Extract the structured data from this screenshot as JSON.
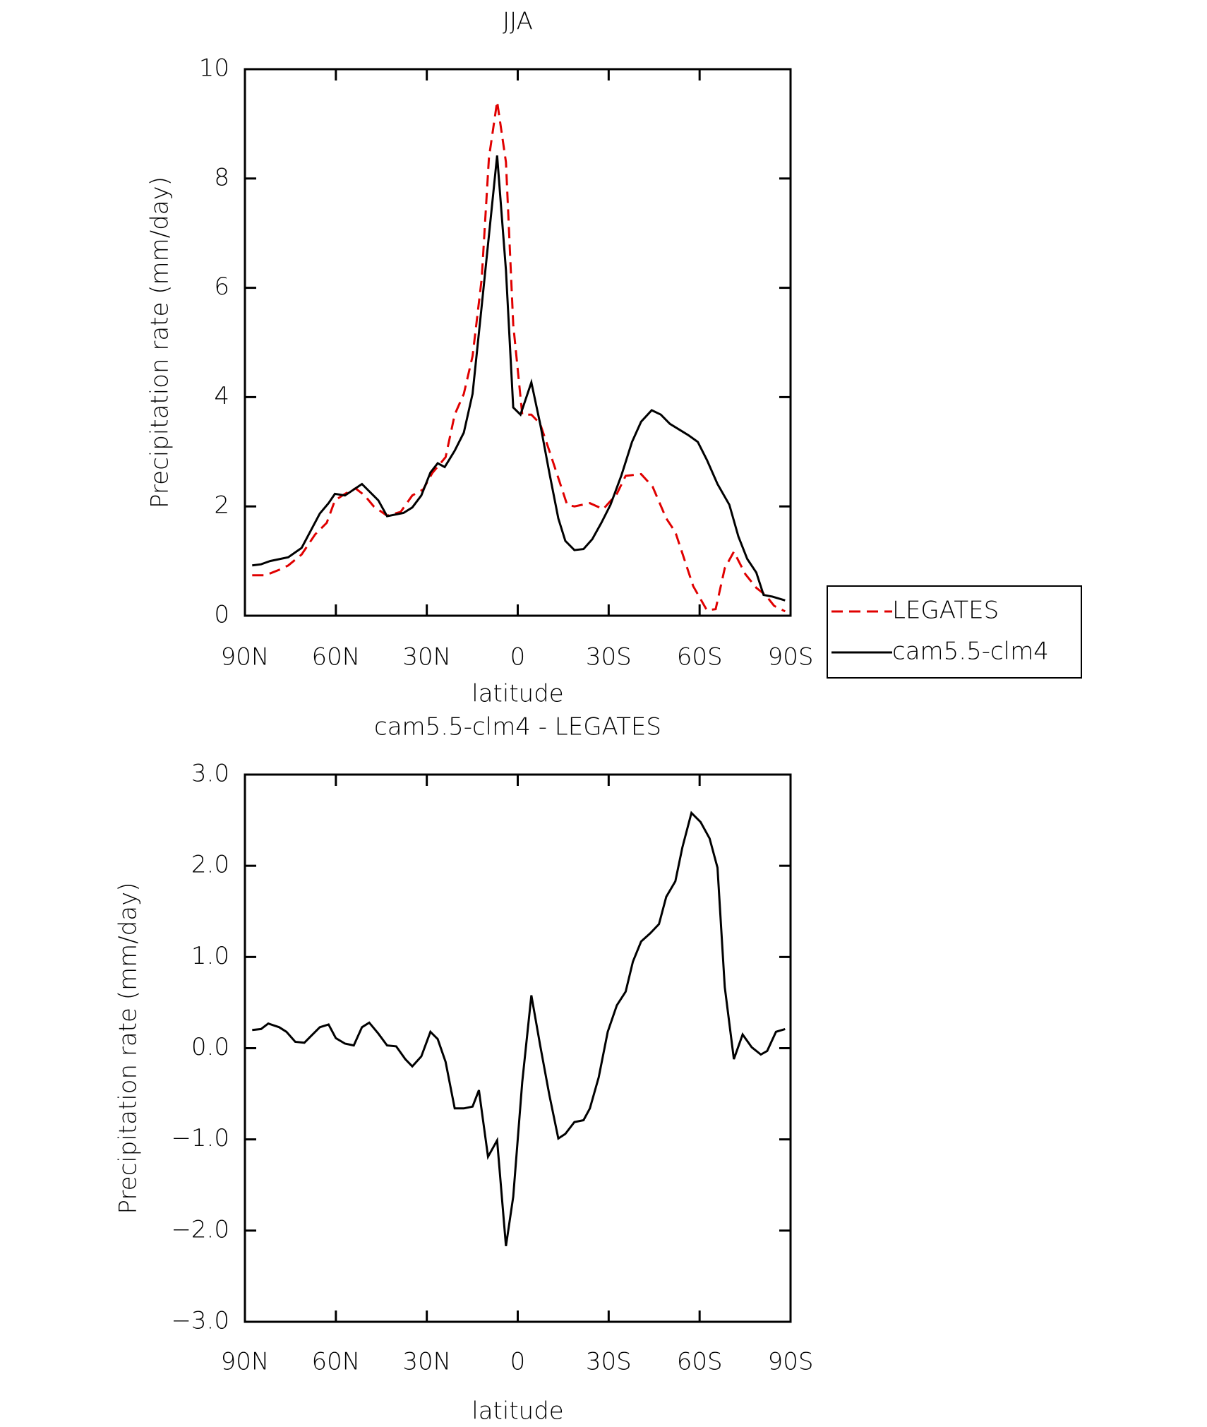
{
  "chart_data": [
    {
      "type": "line",
      "title": "JJA",
      "xlabel": "latitude",
      "ylabel": "Precipitation rate (mm/day)",
      "xlim": [
        90,
        -90
      ],
      "xticks": [
        {
          "value": 90,
          "label": "90N"
        },
        {
          "value": 60,
          "label": "60N"
        },
        {
          "value": 30,
          "label": "30N"
        },
        0,
        {
          "value": -30,
          "label": "30S"
        },
        {
          "value": -60,
          "label": "60S"
        },
        {
          "value": -90,
          "label": "90S"
        }
      ],
      "ylim": [
        0,
        10
      ],
      "yticks": [
        0,
        2,
        4,
        6,
        8,
        10
      ],
      "legend": "right",
      "series": [
        {
          "name": "LEGATES",
          "color": "#e00000",
          "linestyle": "dashed",
          "x": [
            87.6,
            83.2,
            78.7,
            75.7,
            71.3,
            66.8,
            63.0,
            60.3,
            57.0,
            53.5,
            50.5,
            47.5,
            43.1,
            38.6,
            34.8,
            31.2,
            28.2,
            23.8,
            20.8,
            17.8,
            14.9,
            11.9,
            9.5,
            6.8,
            3.9,
            1.5,
            -1.5,
            -4.5,
            -7.4,
            -10.4,
            -13.4,
            -16.3,
            -18.7,
            -23.8,
            -28.2,
            -32.7,
            -35.6,
            -40.7,
            -44.5,
            -49.0,
            -52.0,
            -57.9,
            -62.4,
            -65.3,
            -68.3,
            -71.3,
            -75.1,
            -78.7,
            -81.7,
            -84.6,
            -88.2
          ],
          "values": [
            0.74,
            0.74,
            0.84,
            0.92,
            1.12,
            1.49,
            1.7,
            2.11,
            2.23,
            2.33,
            2.2,
            2.0,
            1.83,
            1.9,
            2.2,
            2.31,
            2.61,
            2.9,
            3.68,
            4.06,
            4.75,
            6.16,
            8.38,
            9.41,
            8.3,
            5.33,
            3.68,
            3.68,
            3.51,
            3.02,
            2.52,
            2.03,
            2.0,
            2.06,
            1.95,
            2.23,
            2.56,
            2.59,
            2.36,
            1.78,
            1.53,
            0.54,
            0.1,
            0.12,
            0.87,
            1.17,
            0.76,
            0.51,
            0.38,
            0.18,
            0.08
          ]
        },
        {
          "name": "cam5.5-clm4",
          "color": "#000000",
          "linestyle": "solid",
          "x": [
            87.6,
            84.7,
            81.7,
            75.7,
            71.3,
            65.3,
            62.4,
            60.3,
            57.0,
            51.4,
            46.0,
            43.1,
            37.7,
            34.8,
            31.8,
            28.8,
            26.4,
            24.1,
            20.8,
            17.8,
            14.9,
            11.9,
            6.8,
            3.9,
            1.5,
            -0.9,
            -4.5,
            -7.4,
            -10.4,
            -13.4,
            -15.7,
            -18.7,
            -21.7,
            -24.6,
            -27.6,
            -30.6,
            -34.2,
            -37.7,
            -40.7,
            -44.2,
            -47.2,
            -50.2,
            -54.9,
            -56.4,
            -59.4,
            -62.4,
            -65.9,
            -69.8,
            -72.8,
            -75.7,
            -78.7,
            -81.1,
            -84.0,
            -88.2
          ],
          "values": [
            0.92,
            0.94,
            1.0,
            1.07,
            1.24,
            1.87,
            2.06,
            2.23,
            2.2,
            2.41,
            2.11,
            1.82,
            1.88,
            1.98,
            2.2,
            2.62,
            2.79,
            2.72,
            3.02,
            3.35,
            4.06,
            5.66,
            8.42,
            6.32,
            3.81,
            3.68,
            4.27,
            3.51,
            2.62,
            1.78,
            1.37,
            1.2,
            1.22,
            1.4,
            1.7,
            2.03,
            2.57,
            3.18,
            3.55,
            3.76,
            3.68,
            3.51,
            3.35,
            3.3,
            3.18,
            2.85,
            2.41,
            2.03,
            1.45,
            1.04,
            0.79,
            0.38,
            0.35,
            0.28
          ]
        }
      ]
    },
    {
      "type": "line",
      "title": "cam5.5-clm4 - LEGATES",
      "xlabel": "latitude",
      "ylabel": "Precipitation rate (mm/day)",
      "xlim": [
        90,
        -90
      ],
      "xticks": [
        {
          "value": 90,
          "label": "90N"
        },
        {
          "value": 60,
          "label": "60N"
        },
        {
          "value": 30,
          "label": "30N"
        },
        0,
        {
          "value": -30,
          "label": "30S"
        },
        {
          "value": -60,
          "label": "60S"
        },
        {
          "value": -90,
          "label": "90S"
        }
      ],
      "ylim": [
        -3,
        3
      ],
      "yticks": [
        {
          "value": -3,
          "label": "−3.0"
        },
        {
          "value": -2,
          "label": "−2.0"
        },
        {
          "value": -1,
          "label": "−1.0"
        },
        {
          "value": 0,
          "label": "0.0"
        },
        {
          "value": 1,
          "label": "1.0"
        },
        {
          "value": 2,
          "label": "2.0"
        },
        {
          "value": 3,
          "label": "3.0"
        }
      ],
      "series": [
        {
          "color": "#000000",
          "linestyle": "solid",
          "x": [
            87.6,
            84.7,
            82.3,
            78.7,
            76.3,
            73.4,
            70.4,
            68.3,
            65.3,
            62.4,
            60.0,
            57.0,
            54.1,
            51.4,
            49.0,
            46.0,
            43.1,
            40.1,
            37.1,
            34.8,
            31.8,
            28.8,
            26.4,
            23.8,
            20.8,
            17.8,
            14.9,
            12.8,
            9.8,
            6.8,
            3.9,
            1.5,
            -1.5,
            -4.5,
            -7.4,
            -10.4,
            -13.4,
            -15.7,
            -18.7,
            -21.7,
            -23.8,
            -26.7,
            -29.7,
            -32.7,
            -35.6,
            -38.0,
            -40.7,
            -43.7,
            -46.6,
            -49.0,
            -52.0,
            -54.3,
            -57.3,
            -60.3,
            -63.3,
            -65.9,
            -68.3,
            -71.3,
            -74.2,
            -77.2,
            -80.2,
            -82.3,
            -85.2,
            -88.2
          ],
          "values": [
            0.2,
            0.21,
            0.27,
            0.23,
            0.18,
            0.07,
            0.06,
            0.13,
            0.23,
            0.26,
            0.11,
            0.05,
            0.03,
            0.23,
            0.28,
            0.16,
            0.03,
            0.02,
            -0.12,
            -0.2,
            -0.09,
            0.18,
            0.1,
            -0.15,
            -0.66,
            -0.66,
            -0.64,
            -0.46,
            -1.19,
            -1.01,
            -2.17,
            -1.63,
            -0.37,
            0.58,
            0.03,
            -0.51,
            -0.99,
            -0.94,
            -0.81,
            -0.79,
            -0.66,
            -0.32,
            0.18,
            0.47,
            0.62,
            0.95,
            1.17,
            1.26,
            1.36,
            1.66,
            1.83,
            2.2,
            2.58,
            2.48,
            2.3,
            1.98,
            0.67,
            -0.12,
            0.15,
            0.01,
            -0.07,
            -0.03,
            0.18,
            0.21
          ]
        }
      ]
    }
  ]
}
